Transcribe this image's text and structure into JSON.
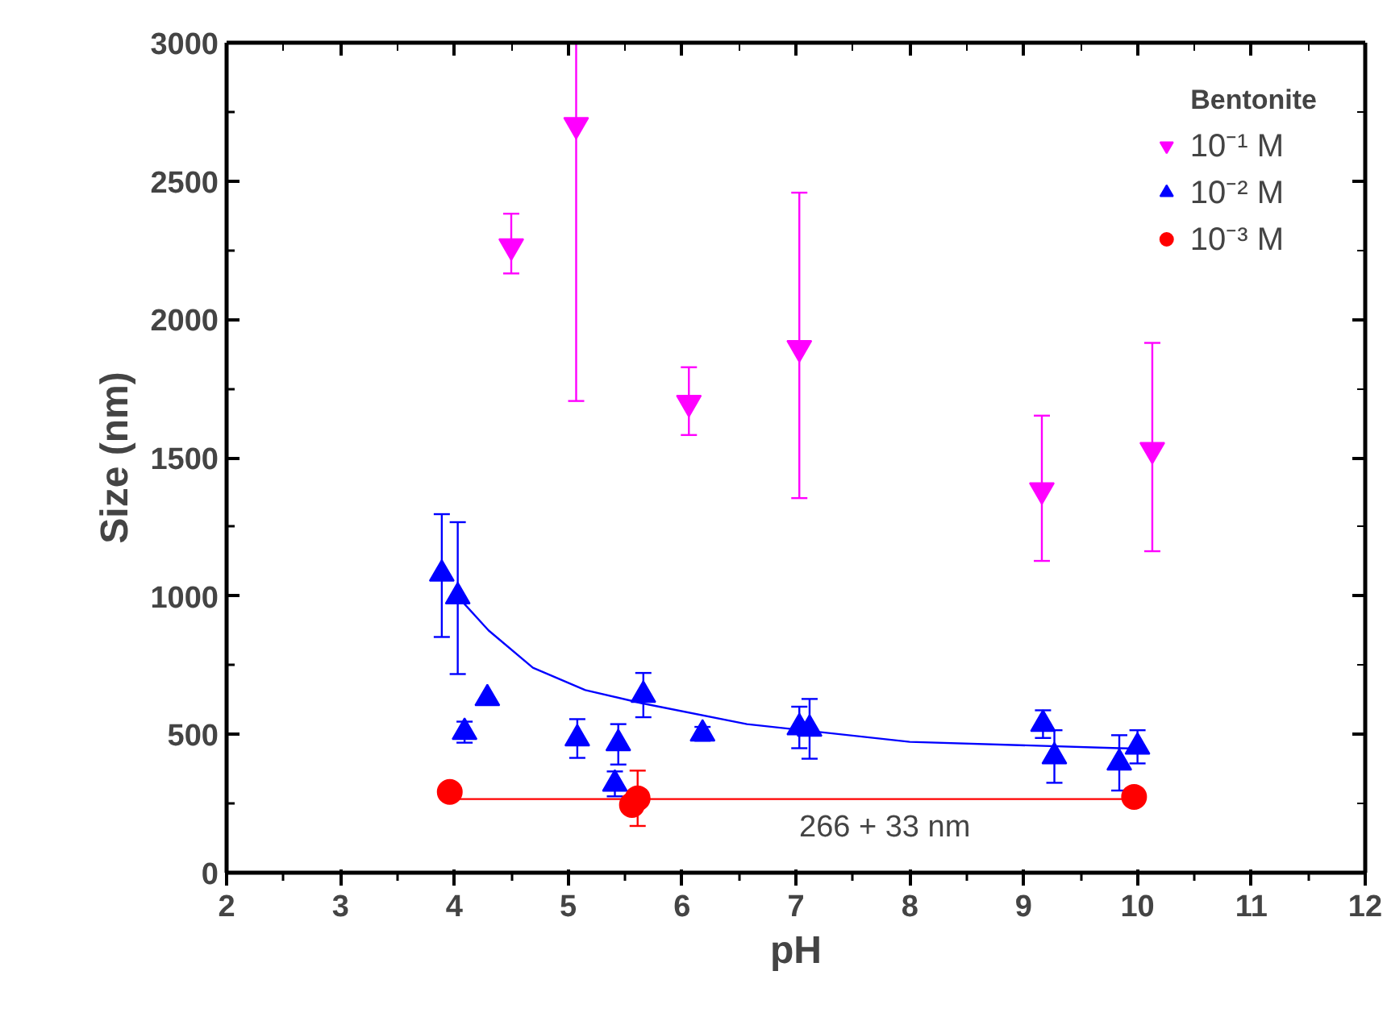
{
  "chart_data": {
    "type": "scatter",
    "title": "Bentonite",
    "xlabel": "pH",
    "ylabel": "Size (nm)",
    "xlim": [
      2,
      12
    ],
    "ylim": [
      0,
      3000
    ],
    "xticks": [
      2,
      3,
      4,
      5,
      6,
      7,
      8,
      9,
      10,
      11,
      12
    ],
    "yticks": [
      0,
      500,
      1000,
      1500,
      2000,
      2500,
      3000
    ],
    "grid": false,
    "legend": "top right",
    "series": [
      {
        "name": "10⁻¹ M",
        "color": "#ff00ff",
        "x": [
          4.5,
          5.07,
          6.06,
          7.03,
          9.16,
          10.13
        ],
        "values": [
          2265,
          2703,
          1699,
          1897,
          1383,
          1529
        ],
        "errors": [
          [
            2166,
            2382
          ],
          [
            1705,
            3000
          ],
          [
            1582,
            1827
          ],
          [
            1354,
            2458
          ],
          [
            1127,
            1652
          ],
          [
            1162,
            1915
          ]
        ]
      },
      {
        "name": "10⁻² M",
        "color": "#0000ff",
        "marker": "triangle",
        "x": [
          3.89,
          4.03,
          4.09,
          4.29,
          5.08,
          5.44,
          5.41,
          5.66,
          6.18,
          7.03,
          7.12,
          9.17,
          9.27,
          9.84,
          10.0
        ],
        "values": [
          1080,
          998,
          508,
          630,
          485,
          467,
          321,
          642,
          502,
          525,
          520,
          537,
          420,
          397,
          455
        ],
        "errors": [
          [
            852,
            1296
          ],
          [
            718,
            1267
          ],
          38,
          null,
          70,
          [
            391,
            537
          ],
          45,
          80,
          25,
          75,
          108,
          50,
          95,
          100,
          60
        ]
      },
      {
        "name": "10⁻³ M",
        "color": "#ff0000",
        "marker": "circle",
        "x": [
          3.96,
          5.56,
          5.61,
          9.97
        ],
        "values": [
          292,
          245,
          269,
          274
        ],
        "errors": [
          20,
          null,
          100,
          null
        ]
      },
      {
        "type": "line",
        "color": "#0000ff",
        "x": [
          4.03,
          4.3,
          4.69,
          5.15,
          5.64,
          6.57,
          8.0,
          9.84,
          10.0
        ],
        "values": [
          998,
          876,
          741,
          660,
          613,
          537,
          473,
          450,
          449
        ]
      },
      {
        "type": "line",
        "color": "#ff0000",
        "x": [
          3.96,
          9.97
        ],
        "values": [
          266,
          266
        ]
      }
    ],
    "annotations": [
      "266 + 33 nm"
    ]
  }
}
